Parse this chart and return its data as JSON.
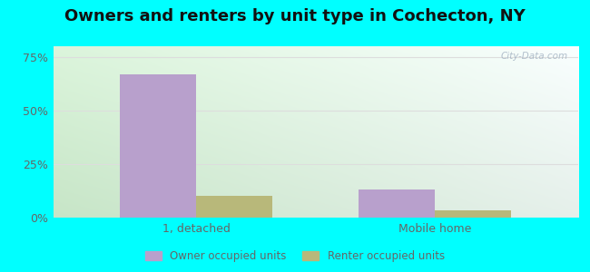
{
  "title": "Owners and renters by unit type in Cochecton, NY",
  "categories": [
    "1, detached",
    "Mobile home"
  ],
  "owner_values": [
    67.0,
    13.0
  ],
  "renter_values": [
    10.0,
    3.5
  ],
  "owner_color": "#b8a0cc",
  "renter_color": "#b8b87a",
  "bg_color_topleft": "#e8f5e8",
  "bg_color_topright": "#e0f5f5",
  "bg_color_bottomleft": "#c8e8c0",
  "bg_color_bottomright": "#c8f0e8",
  "outer_bg": "#00ffff",
  "ylim": [
    0,
    80
  ],
  "yticks": [
    0,
    25,
    50,
    75
  ],
  "yticklabels": [
    "0%",
    "25%",
    "50%",
    "75%"
  ],
  "bar_width": 0.32,
  "title_fontsize": 13,
  "tick_color": "#666666",
  "grid_color": "#dddddd",
  "legend_labels": [
    "Owner occupied units",
    "Renter occupied units"
  ],
  "watermark": "City-Data.com"
}
